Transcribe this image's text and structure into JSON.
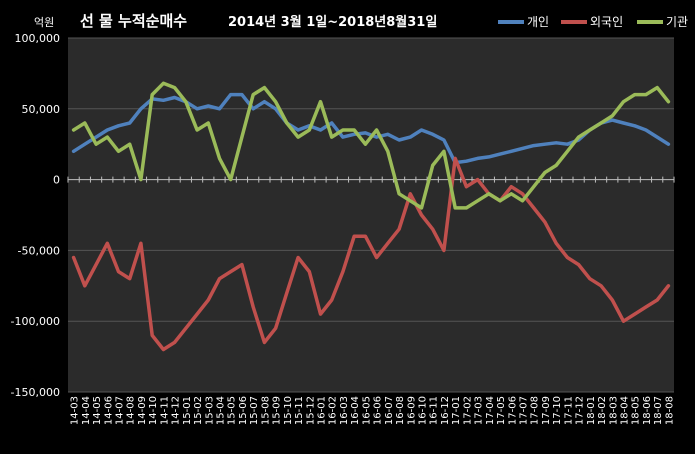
{
  "chart_data": {
    "type": "line",
    "title": "선 물 누적순매수",
    "subtitle": "2014년 3월 1일~2018년8월31일",
    "unit_label": "억원",
    "ylim": [
      -150000,
      100000
    ],
    "yticks": [
      100000,
      50000,
      0,
      -50000,
      -100000,
      -150000
    ],
    "ytick_labels": [
      "100,000",
      "50,000",
      "0",
      "-50,000",
      "-100,000",
      "-150,000"
    ],
    "grid": true,
    "legend_position": "top-right",
    "categories": [
      "14-03",
      "14-04",
      "14-05",
      "14-06",
      "14-07",
      "14-08",
      "14-09",
      "14-10",
      "14-11",
      "14-12",
      "15-01",
      "15-02",
      "15-03",
      "15-04",
      "15-05",
      "15-06",
      "15-07",
      "15-08",
      "15-09",
      "15-10",
      "15-11",
      "15-12",
      "16-01",
      "16-02",
      "16-03",
      "16-04",
      "16-05",
      "16-06",
      "16-07",
      "16-08",
      "16-09",
      "16-10",
      "16-11",
      "16-12",
      "17-01",
      "17-02",
      "17-03",
      "17-04",
      "17-05",
      "17-06",
      "17-07",
      "17-08",
      "17-09",
      "17-10",
      "17-11",
      "17-12",
      "18-01",
      "18-02",
      "18-03",
      "18-04",
      "18-05",
      "18-06",
      "18-07",
      "18-08"
    ],
    "series": [
      {
        "name": "개인",
        "color": "#4f81bd",
        "values": [
          20000,
          25000,
          30000,
          35000,
          38000,
          40000,
          50000,
          57000,
          56000,
          58000,
          55000,
          50000,
          52000,
          50000,
          60000,
          60000,
          50000,
          55000,
          50000,
          40000,
          35000,
          38000,
          35000,
          40000,
          30000,
          32000,
          33000,
          30000,
          32000,
          28000,
          30000,
          35000,
          32000,
          28000,
          12000,
          13000,
          15000,
          16000,
          18000,
          20000,
          22000,
          24000,
          25000,
          26000,
          25000,
          28000,
          35000,
          40000,
          42000,
          40000,
          38000,
          35000,
          30000,
          25000
        ]
      },
      {
        "name": "외국인",
        "color": "#c0504d",
        "values": [
          -55000,
          -75000,
          -60000,
          -45000,
          -65000,
          -70000,
          -45000,
          -110000,
          -120000,
          -115000,
          -105000,
          -95000,
          -85000,
          -70000,
          -65000,
          -60000,
          -90000,
          -115000,
          -105000,
          -80000,
          -55000,
          -65000,
          -95000,
          -85000,
          -65000,
          -40000,
          -40000,
          -55000,
          -45000,
          -35000,
          -10000,
          -25000,
          -35000,
          -50000,
          15000,
          -5000,
          0,
          -10000,
          -15000,
          -5000,
          -10000,
          -20000,
          -30000,
          -45000,
          -55000,
          -60000,
          -70000,
          -75000,
          -85000,
          -100000,
          -95000,
          -90000,
          -85000,
          -75000
        ]
      },
      {
        "name": "기관",
        "color": "#9bbb59",
        "values": [
          35000,
          40000,
          25000,
          30000,
          20000,
          25000,
          0,
          60000,
          68000,
          65000,
          55000,
          35000,
          40000,
          15000,
          0,
          30000,
          60000,
          65000,
          55000,
          40000,
          30000,
          35000,
          55000,
          30000,
          35000,
          35000,
          25000,
          35000,
          20000,
          -10000,
          -15000,
          -20000,
          10000,
          20000,
          -20000,
          -20000,
          -15000,
          -10000,
          -15000,
          -10000,
          -15000,
          -5000,
          5000,
          10000,
          20000,
          30000,
          35000,
          40000,
          45000,
          55000,
          60000,
          60000,
          65000,
          55000
        ]
      }
    ]
  }
}
